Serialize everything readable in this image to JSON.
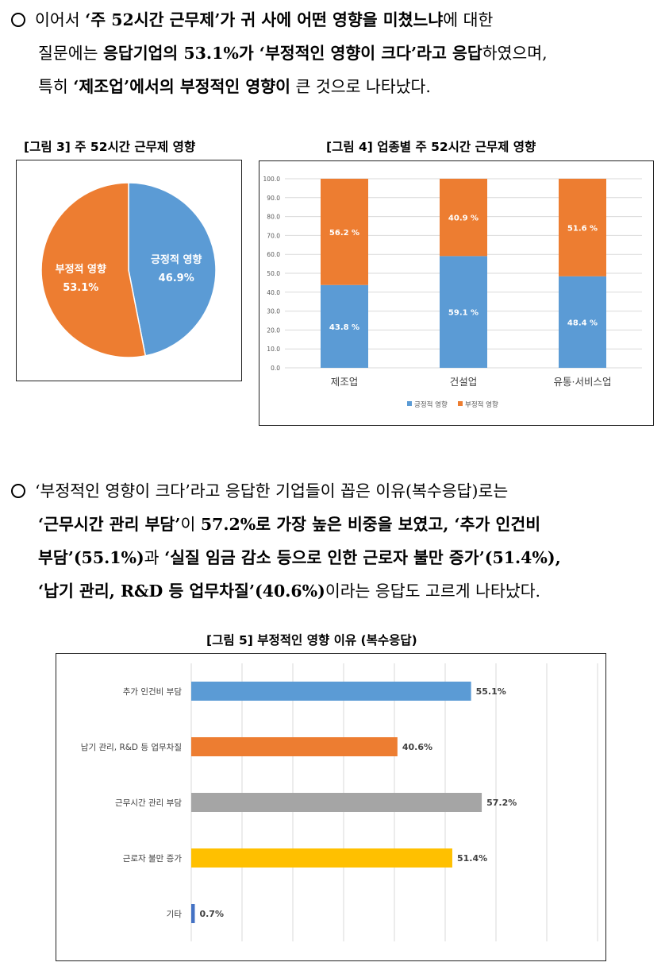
{
  "paragraph1": {
    "line1": [
      "이어서 ",
      "‘주 52시간 근무제’가 귀 사에 어떤 영향을 미쳤느냐",
      "에 대한"
    ],
    "line2": [
      "질문에는 ",
      "응답기업의 53.1%가 ‘부정적인 영향이 크다’라고 응답",
      "하였으며,"
    ],
    "line3": [
      "특히 ",
      "‘제조업’에서의 부정적인 영향이",
      " 큰 것으로 나타났다."
    ]
  },
  "figure3": {
    "caption": "[그림 3] 주 52시간 근무제 영향",
    "chart_data": {
      "type": "pie",
      "slices": [
        {
          "label": "긍정적 영향",
          "value": 46.9,
          "value_label": "46.9%",
          "color": "#5B9BD5"
        },
        {
          "label": "부정적 영향",
          "value": 53.1,
          "value_label": "53.1%",
          "color": "#ED7D31"
        }
      ]
    }
  },
  "figure4": {
    "caption": "[그림 4] 업종별 주 52시간 근무제 영향",
    "chart_data": {
      "type": "bar",
      "stacked": true,
      "categories": [
        "제조업",
        "건설업",
        "유통·서비스업"
      ],
      "series": [
        {
          "name": "긍정적 영향",
          "values": [
            43.8,
            59.1,
            48.4
          ],
          "labels": [
            "43.8 %",
            "59.1 %",
            "48.4 %"
          ],
          "color": "#5B9BD5"
        },
        {
          "name": "부정적 영향",
          "values": [
            56.2,
            40.9,
            51.6
          ],
          "labels": [
            "56.2 %",
            "40.9 %",
            "51.6 %"
          ],
          "color": "#ED7D31"
        }
      ],
      "ylim": [
        0,
        100
      ],
      "yticks": [
        "0.0",
        "10.0",
        "20.0",
        "30.0",
        "40.0",
        "50.0",
        "60.0",
        "70.0",
        "80.0",
        "90.0",
        "100.0"
      ],
      "grid": true,
      "legend": "bottom"
    }
  },
  "paragraph2": {
    "line1": [
      "‘부정적인 영향이 크다’라고 응답한 기업들이 꼽은 이유(복수응답)로는"
    ],
    "line2": [
      "‘근무시간 관리 부담’",
      "이 ",
      "57.2%로 가장 높은 비중을 보였고, ‘추가 인건비"
    ],
    "line3": [
      "부담’(55.1%)",
      "과 ",
      "‘실질 임금 감소 등으로 인한 근로자 불만 증가’(51.4%),"
    ],
    "line4": [
      "‘납기 관리, R&D 등 업무차질’(40.6%)",
      "이라는 응답도 고르게 나타났다."
    ]
  },
  "figure5": {
    "caption": "[그림 5] 부정적인 영향 이유 (복수응답)",
    "chart_data": {
      "type": "bar",
      "orientation": "horizontal",
      "categories": [
        "추가 인건비 부담",
        "납기 관리, R&D 등 업무차질",
        "근무시간 관리 부담",
        "근로자 불만 증가",
        "기타"
      ],
      "values": [
        55.1,
        40.6,
        57.2,
        51.4,
        0.7
      ],
      "labels": [
        "55.1%",
        "40.6%",
        "57.2%",
        "51.4%",
        "0.7%"
      ],
      "colors": [
        "#5B9BD5",
        "#ED7D31",
        "#A5A5A5",
        "#FFC000",
        "#4472C4"
      ],
      "xlim": [
        0,
        80
      ],
      "grid": true
    }
  }
}
